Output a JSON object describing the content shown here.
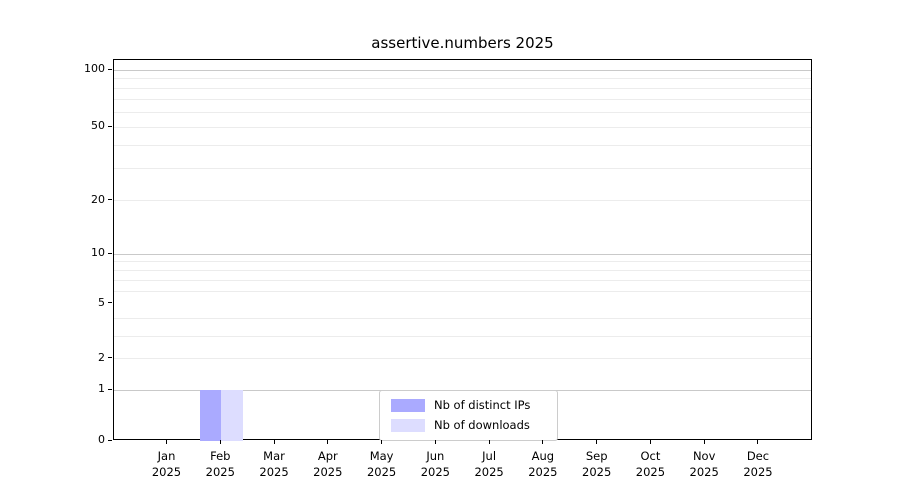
{
  "chart_data": {
    "type": "bar",
    "title": "assertive.numbers 2025",
    "x_year": "2025",
    "categories": [
      "Jan",
      "Feb",
      "Mar",
      "Apr",
      "May",
      "Jun",
      "Jul",
      "Aug",
      "Sep",
      "Oct",
      "Nov",
      "Dec"
    ],
    "series": [
      {
        "name": "Nb of distinct IPs",
        "color": "#aaaaff",
        "values": [
          0,
          1,
          0,
          0,
          0,
          0,
          0,
          0,
          0,
          0,
          0,
          0
        ]
      },
      {
        "name": "Nb of downloads",
        "color": "#ddddff",
        "values": [
          0,
          1,
          0,
          0,
          0,
          0,
          0,
          0,
          0,
          0,
          0,
          0
        ]
      }
    ],
    "xlabel": "",
    "ylabel": "",
    "yaxis": {
      "scale": "log1p",
      "tick_labels": [
        0,
        1,
        2,
        5,
        10,
        20,
        50,
        100
      ],
      "major_gridlines": [
        1,
        10,
        100
      ],
      "light_gridlines": [
        2,
        3,
        4,
        6,
        7,
        8,
        9,
        20,
        30,
        40,
        50,
        60,
        70,
        80,
        90
      ],
      "ylim": [
        0,
        113
      ]
    },
    "grid": "horizontal",
    "legend_position": "lower center"
  },
  "colors": {
    "major_grid": "#c9c9c9",
    "light_grid": "#ececec",
    "axis": "#000000",
    "legend_border": "#cccccc",
    "background": "#ffffff"
  }
}
